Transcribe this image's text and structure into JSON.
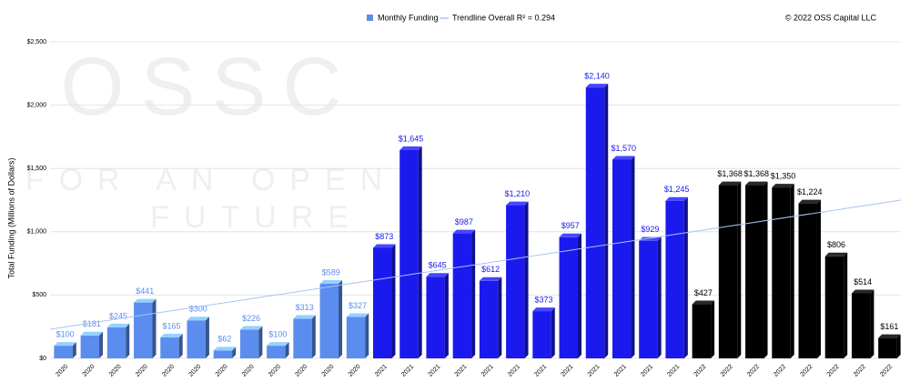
{
  "chart_data": {
    "type": "bar",
    "legend": {
      "items": [
        "Monthly Funding",
        "Trendline Overall R² = 0.294"
      ],
      "position": "top"
    },
    "copyright": "© 2022 OSS Capital LLC",
    "watermark": [
      "OSSC",
      "FOR AN OPEN",
      "FUTURE"
    ],
    "y_label": "Total Funding (Millions of Dollars)",
    "categories": [
      "2020",
      "2020",
      "2020",
      "2020",
      "2020",
      "2020",
      "2020",
      "2020",
      "2020",
      "2020",
      "2020",
      "2020",
      "2021",
      "2021",
      "2021",
      "2021",
      "2021",
      "2021",
      "2021",
      "2021",
      "2021",
      "2021",
      "2021",
      "2021",
      "2022",
      "2022",
      "2022",
      "2022",
      "2022",
      "2022",
      "2022",
      "2022"
    ],
    "values": [
      100,
      181,
      245,
      441,
      165,
      300,
      62,
      226,
      100,
      313,
      589,
      327,
      873,
      1645,
      645,
      987,
      612,
      1210,
      373,
      957,
      2140,
      1570,
      929,
      1245,
      427,
      1368,
      1368,
      1350,
      1224,
      806,
      514,
      161
    ],
    "value_labels": [
      "$100",
      "$181",
      "$245",
      "$441",
      "$165",
      "$300",
      "$62",
      "$226",
      "$100",
      "$313",
      "$589",
      "$327",
      "$873",
      "$1,645",
      "$645",
      "$987",
      "$612",
      "$1,210",
      "$373",
      "$957",
      "$2,140",
      "$1,570",
      "$929",
      "$1,245",
      "$427",
      "$1,368",
      "$1,368",
      "$1,350",
      "$1,224",
      "$806",
      "$514",
      "$161"
    ],
    "bar_colors": [
      "#5b8def",
      "#5b8def",
      "#5b8def",
      "#5b8def",
      "#5b8def",
      "#5b8def",
      "#5b8def",
      "#5b8def",
      "#5b8def",
      "#5b8def",
      "#5b8def",
      "#5b8def",
      "#1a1aef",
      "#1a1aef",
      "#1a1aef",
      "#1a1aef",
      "#1a1aef",
      "#1a1aef",
      "#1a1aef",
      "#1a1aef",
      "#1a1aef",
      "#1a1aef",
      "#1a1aef",
      "#1a1aef",
      "#000000",
      "#000000",
      "#000000",
      "#000000",
      "#000000",
      "#000000",
      "#000000",
      "#000000"
    ],
    "legend_color": "#5b8def",
    "trendline": {
      "color": "#a9c4f0",
      "values": [
        230,
        1250
      ]
    },
    "ylim": [
      0,
      2500
    ],
    "yticks": [
      {
        "value": 0,
        "label": "$0"
      },
      {
        "value": 500,
        "label": "$500"
      },
      {
        "value": 1000,
        "label": "$1,000"
      },
      {
        "value": 1500,
        "label": "$1,500"
      },
      {
        "value": 2000,
        "label": "$2,000"
      },
      {
        "value": 2500,
        "label": "$2,500"
      }
    ],
    "grid": true
  }
}
